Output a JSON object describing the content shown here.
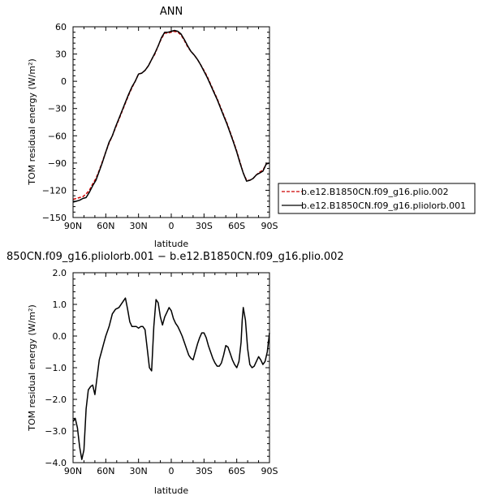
{
  "chart_data": [
    {
      "type": "line",
      "title": "ANN",
      "xlabel": "latitude",
      "ylabel": "TOM residual energy  (W/m²)",
      "xlim": [
        90,
        -90
      ],
      "ylim": [
        -150,
        60
      ],
      "x_ticks": [
        90,
        60,
        30,
        0,
        -30,
        -60,
        -90
      ],
      "x_tick_labels": [
        "90N",
        "60N",
        "30N",
        "0",
        "30S",
        "60S",
        "90S"
      ],
      "y_ticks": [
        -150,
        -120,
        -90,
        -60,
        -30,
        0,
        30,
        60
      ],
      "y_tick_labels": [
        "−150",
        "−120",
        "−90",
        "−60",
        "−30",
        "0",
        "30",
        "60"
      ],
      "legend_position": "right, outside plot",
      "series": [
        {
          "name": "b.e12.B1850CN.f09_g16.plio.002",
          "color": "#cc0000",
          "dash": "dashed",
          "x": [
            90,
            87,
            84,
            81,
            78,
            75,
            72,
            69,
            66,
            63,
            60,
            57,
            54,
            51,
            48,
            45,
            42,
            39,
            36,
            33,
            30,
            27,
            24,
            21,
            18,
            15,
            12,
            9,
            6,
            3,
            0,
            -3,
            -6,
            -9,
            -12,
            -15,
            -18,
            -21,
            -24,
            -27,
            -30,
            -33,
            -36,
            -39,
            -42,
            -45,
            -48,
            -51,
            -54,
            -57,
            -60,
            -63,
            -66,
            -69,
            -72,
            -75,
            -78,
            -81,
            -84,
            -87,
            -90
          ],
          "y": [
            -130,
            -129,
            -128,
            -127,
            -124,
            -120,
            -113,
            -107,
            -98,
            -88,
            -78,
            -68,
            -60,
            -51,
            -42,
            -33,
            -24,
            -15,
            -7,
            0,
            8,
            9,
            12,
            17,
            24,
            30,
            39,
            47,
            53,
            53,
            54,
            55,
            54,
            51,
            45,
            38,
            33,
            29,
            24,
            18,
            12,
            5,
            -3,
            -11,
            -19,
            -28,
            -37,
            -46,
            -56,
            -66,
            -77,
            -89,
            -101,
            -109,
            -109,
            -107,
            -103,
            -100,
            -98,
            -91,
            -90
          ]
        },
        {
          "name": "b.e12.B1850CN.f09_g16.pliolorb.001",
          "color": "#000000",
          "dash": "solid",
          "x": [
            90,
            87,
            84,
            81,
            78,
            75,
            72,
            69,
            66,
            63,
            60,
            57,
            54,
            51,
            48,
            45,
            42,
            39,
            36,
            33,
            30,
            27,
            24,
            21,
            18,
            15,
            12,
            9,
            6,
            3,
            0,
            -3,
            -6,
            -9,
            -12,
            -15,
            -18,
            -21,
            -24,
            -27,
            -30,
            -33,
            -36,
            -39,
            -42,
            -45,
            -48,
            -51,
            -54,
            -57,
            -60,
            -63,
            -66,
            -69,
            -72,
            -75,
            -78,
            -81,
            -84,
            -87,
            -90
          ],
          "y": [
            -133,
            -132,
            -131,
            -129,
            -128,
            -122,
            -115,
            -109,
            -99,
            -89,
            -78,
            -67,
            -60,
            -50,
            -41,
            -32,
            -23,
            -14,
            -6,
            0,
            8,
            9,
            12,
            17,
            24,
            31,
            39,
            48,
            54,
            54,
            55,
            56,
            55,
            52,
            46,
            39,
            33,
            29,
            24,
            18,
            11,
            4,
            -4,
            -12,
            -20,
            -29,
            -38,
            -47,
            -57,
            -67,
            -78,
            -90,
            -101,
            -110,
            -109,
            -107,
            -103,
            -101,
            -99,
            -91,
            -90
          ]
        }
      ]
    },
    {
      "type": "line",
      "title": "850CN.f09_g16.pliolorb.001 − b.e12.B1850CN.f09_g16.plio.002",
      "xlabel": "latitude",
      "ylabel": "TOM residual energy  (W/m²)",
      "xlim": [
        90,
        -90
      ],
      "ylim": [
        -4,
        2
      ],
      "x_ticks": [
        90,
        60,
        30,
        0,
        -30,
        -60,
        -90
      ],
      "x_tick_labels": [
        "90N",
        "60N",
        "30N",
        "0",
        "30S",
        "60S",
        "90S"
      ],
      "y_ticks": [
        -4,
        -3,
        -2,
        -1,
        0,
        1,
        2
      ],
      "y_tick_labels": [
        "−4.0",
        "−3.0",
        "−2.0",
        "−1.0",
        "0.0",
        "1.0",
        "2.0"
      ],
      "series": [
        {
          "color": "#000000",
          "dash": "solid",
          "x": [
            90,
            88,
            86,
            84,
            82,
            80,
            78,
            76,
            74,
            72,
            70,
            68,
            66,
            64,
            62,
            60,
            57,
            54,
            51,
            48,
            45,
            42,
            40,
            38,
            36,
            34,
            32,
            30,
            28,
            26,
            24,
            22,
            20,
            18,
            16,
            14,
            12,
            10,
            8,
            6,
            4,
            2,
            0,
            -2,
            -4,
            -6,
            -8,
            -10,
            -12,
            -14,
            -16,
            -18,
            -20,
            -22,
            -24,
            -26,
            -28,
            -30,
            -32,
            -34,
            -36,
            -38,
            -40,
            -42,
            -44,
            -46,
            -48,
            -50,
            -52,
            -54,
            -56,
            -58,
            -60,
            -62,
            -64,
            -65,
            -66,
            -68,
            -70,
            -72,
            -74,
            -76,
            -78,
            -80,
            -82,
            -84,
            -86,
            -88,
            -90
          ],
          "y": [
            -2.7,
            -2.6,
            -2.9,
            -3.5,
            -3.9,
            -3.6,
            -2.3,
            -1.7,
            -1.6,
            -1.55,
            -1.85,
            -1.3,
            -0.75,
            -0.5,
            -0.25,
            0.0,
            0.3,
            0.7,
            0.85,
            0.9,
            1.05,
            1.2,
            0.85,
            0.45,
            0.3,
            0.3,
            0.3,
            0.25,
            0.3,
            0.3,
            0.2,
            -0.4,
            -1.0,
            -1.1,
            0.3,
            1.15,
            1.05,
            0.6,
            0.35,
            0.6,
            0.75,
            0.9,
            0.8,
            0.55,
            0.4,
            0.3,
            0.15,
            0.0,
            -0.2,
            -0.4,
            -0.6,
            -0.7,
            -0.75,
            -0.5,
            -0.25,
            -0.05,
            0.1,
            0.1,
            -0.05,
            -0.3,
            -0.5,
            -0.7,
            -0.85,
            -0.95,
            -0.95,
            -0.85,
            -0.6,
            -0.3,
            -0.35,
            -0.55,
            -0.75,
            -0.9,
            -1.0,
            -0.8,
            -0.2,
            0.5,
            0.9,
            0.5,
            -0.4,
            -0.9,
            -1.0,
            -0.95,
            -0.8,
            -0.65,
            -0.75,
            -0.9,
            -0.8,
            -0.5,
            0.1
          ]
        }
      ]
    }
  ]
}
